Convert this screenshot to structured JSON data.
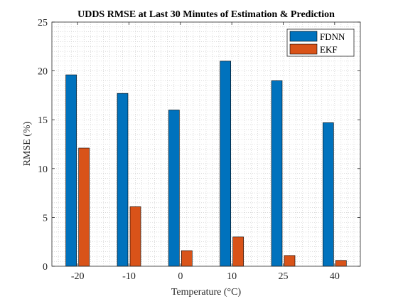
{
  "chart_data": {
    "type": "bar",
    "title": "UDDS RMSE at Last 30 Minutes of Estimation & Prediction",
    "xlabel": "Temperature (°C)",
    "ylabel": "RMSE (%)",
    "categories": [
      "-20",
      "-10",
      "0",
      "10",
      "25",
      "40"
    ],
    "ylim": [
      0,
      25
    ],
    "yticks": [
      0,
      5,
      10,
      15,
      20,
      25
    ],
    "grid": "minor dotted",
    "legend_position": "top-right",
    "series": [
      {
        "name": "FDNN",
        "color": "#0072BD",
        "values": [
          19.6,
          17.7,
          16.0,
          21.0,
          19.0,
          14.7
        ]
      },
      {
        "name": "EKF",
        "color": "#D95319",
        "values": [
          12.1,
          6.1,
          1.6,
          3.0,
          1.1,
          0.6
        ]
      }
    ]
  }
}
